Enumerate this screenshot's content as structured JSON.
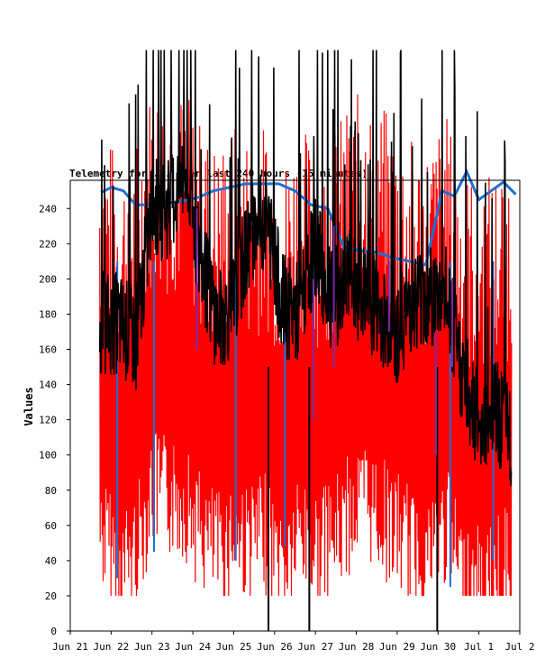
{
  "chart_data": {
    "type": "line",
    "title": "Telemetry for ... over last 240 hours (15 minutes)",
    "xlabel": "",
    "ylabel": "Values",
    "ylim": [
      0,
      256
    ],
    "yticks": [
      0,
      20,
      40,
      60,
      80,
      100,
      120,
      140,
      160,
      180,
      200,
      220,
      240
    ],
    "xticks": [
      "Jun 21",
      "Jun 22",
      "Jun 23",
      "Jun 24",
      "Jun 25",
      "Jun 26",
      "Jun 27",
      "Jun 28",
      "Jun 29",
      "Jun 30",
      "Jul 1",
      "Jul 2"
    ],
    "xlim_days": [
      0,
      11
    ],
    "grid": false,
    "colors": {
      "red": "#ff0000",
      "black": "#000000",
      "blue": "#1f6fd1",
      "purple": "#7a2aa8"
    },
    "series": [
      {
        "color": "#ff0000",
        "x": [
          0.8,
          1.2,
          1.6,
          2.0,
          2.4,
          2.8,
          3.2,
          3.6,
          4.0,
          4.4,
          4.8,
          5.2,
          5.6,
          6.0,
          6.4,
          6.8,
          7.2,
          7.6,
          8.0,
          8.4,
          8.8,
          9.2,
          9.6,
          10.0,
          10.4,
          10.8
        ],
        "y": [
          130,
          110,
          120,
          155,
          150,
          150,
          130,
          120,
          130,
          125,
          130,
          110,
          130,
          120,
          125,
          140,
          150,
          140,
          130,
          120,
          120,
          135,
          105,
          100,
          105,
          115
        ]
      },
      {
        "color": "#000000",
        "x": [
          0.8,
          1.2,
          1.6,
          2.0,
          2.4,
          2.8,
          3.2,
          3.6,
          4.0,
          4.4,
          4.8,
          5.2,
          5.6,
          6.0,
          6.4,
          6.8,
          7.2,
          7.6,
          8.0,
          8.4,
          8.8,
          9.2,
          9.6,
          10.0,
          10.4,
          10.8
        ],
        "y": [
          175,
          175,
          165,
          240,
          240,
          260,
          210,
          175,
          185,
          225,
          235,
          185,
          180,
          220,
          185,
          200,
          190,
          180,
          170,
          190,
          190,
          190,
          145,
          120,
          125,
          110
        ]
      },
      {
        "color": "#1f6fd1",
        "x": [
          0.75,
          1.0,
          1.3,
          1.6,
          1.9,
          2.3,
          2.7,
          3.1,
          3.5,
          3.9,
          4.3,
          4.7,
          5.1,
          5.5,
          5.9,
          6.3,
          6.7,
          7.1,
          7.5,
          7.9,
          8.3,
          8.7,
          9.1,
          9.4,
          9.7,
          10.0,
          10.3,
          10.6,
          10.9
        ],
        "y": [
          249,
          252,
          250,
          242,
          242,
          243,
          244,
          246,
          250,
          252,
          254,
          254,
          254,
          250,
          242,
          240,
          218,
          216,
          215,
          212,
          210,
          208,
          250,
          247,
          261,
          245,
          250,
          255,
          248
        ]
      }
    ]
  }
}
